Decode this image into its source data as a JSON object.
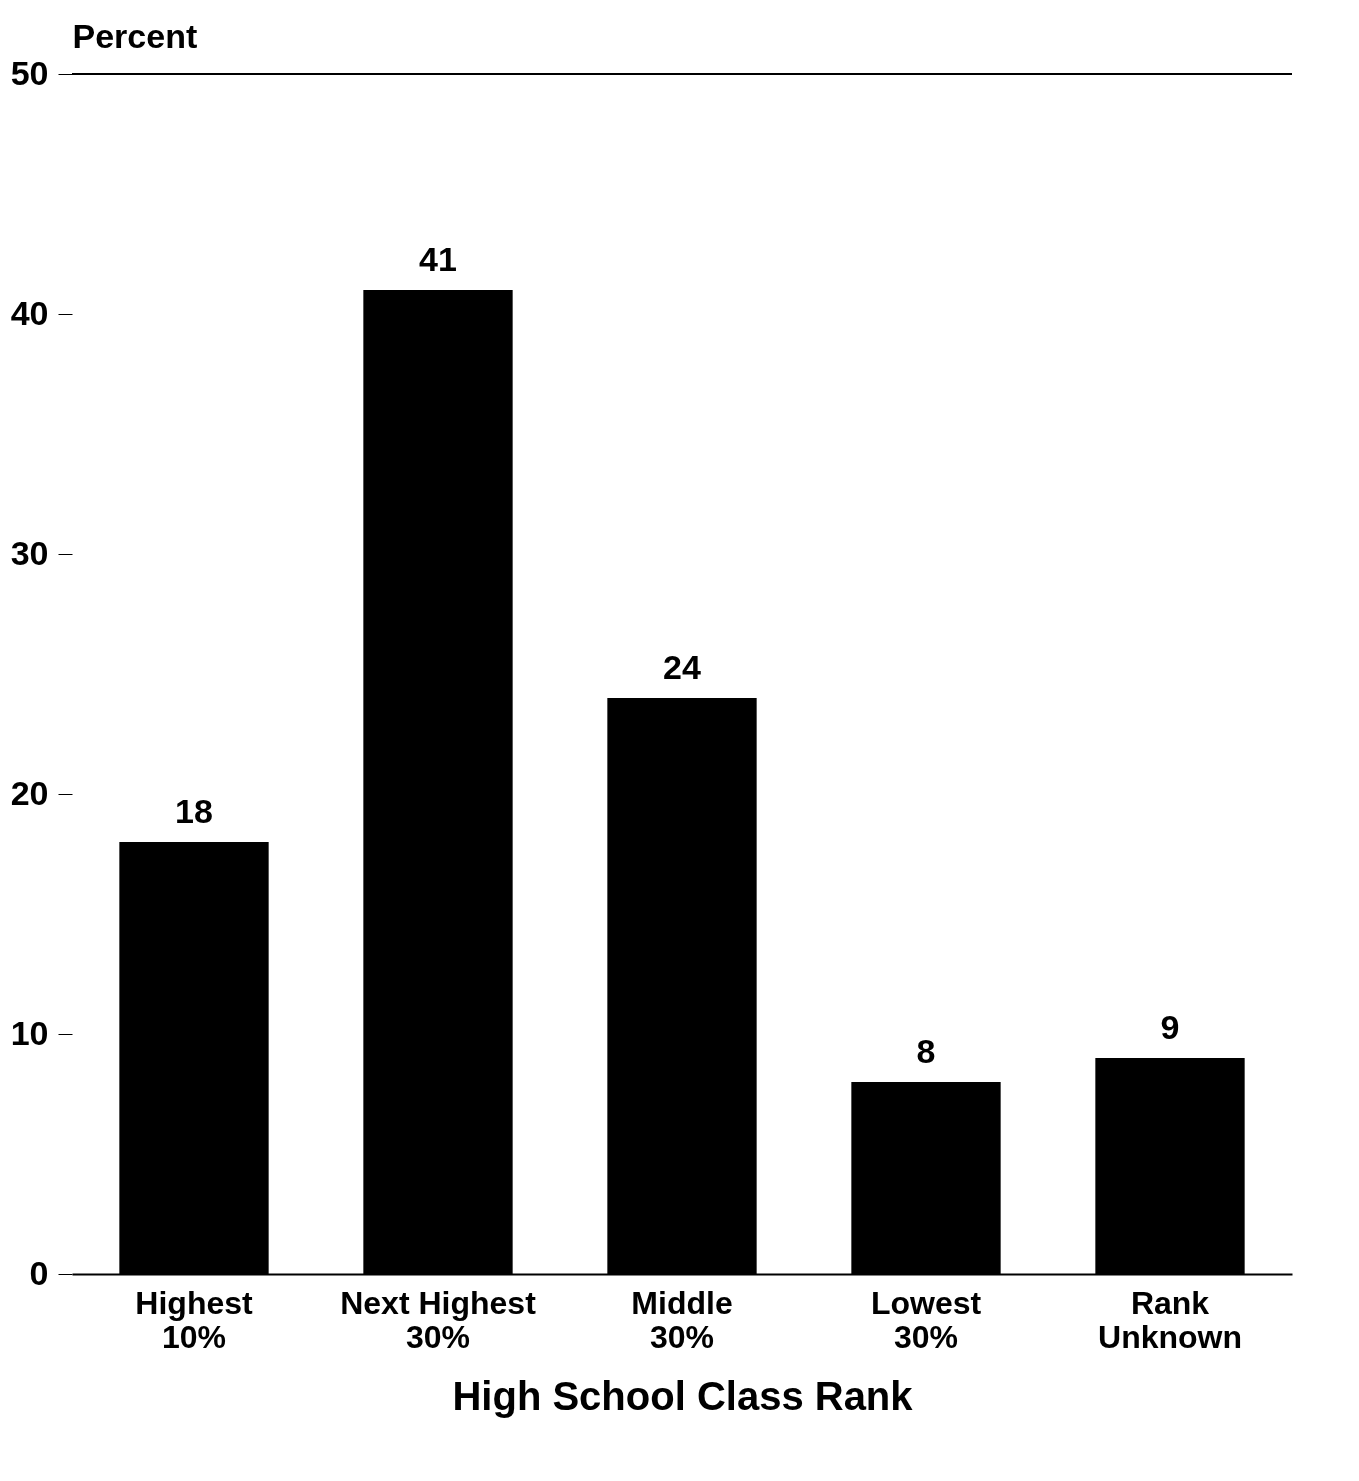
{
  "chart_data": {
    "type": "bar",
    "xlabel": "High School Class Rank",
    "ylabel": "Percent",
    "categories": [
      "Highest 10%",
      "Next Highest 30%",
      "Middle 30%",
      "Lowest 30%",
      "Rank Unknown"
    ],
    "values": [
      18,
      41,
      24,
      8,
      9
    ],
    "color": "#000000",
    "ylim": [
      0,
      50
    ],
    "yticks": [
      0,
      10,
      20,
      30,
      40,
      50
    ],
    "grid": false,
    "data_labels": true,
    "ref_lines": [
      {
        "axis": "y",
        "value": 50
      }
    ]
  }
}
